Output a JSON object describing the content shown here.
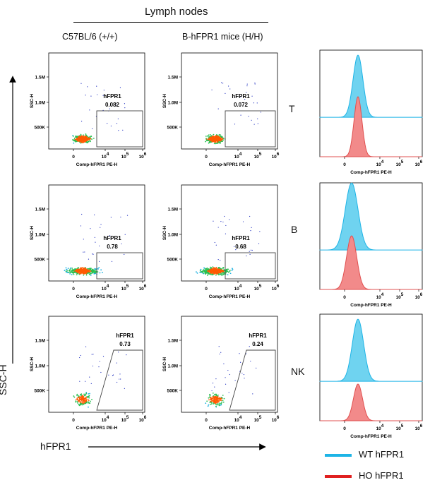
{
  "header": {
    "title": "Lymph nodes"
  },
  "columns": [
    "C57BL/6 (+/+)",
    "B-hFPR1 mice (H/H)"
  ],
  "rows": [
    "T",
    "B",
    "NK"
  ],
  "axes": {
    "y_label": "SSC-H",
    "x_label": "hFPR1"
  },
  "legend": [
    {
      "label": "WT hFPR1",
      "color": "#1eb4e6"
    },
    {
      "label": "HO hFPR1",
      "color": "#e02020"
    }
  ],
  "chart_data": {
    "type": "scatter",
    "dot_plot_axes": {
      "ylabel": "SSC-H",
      "xlabel": "Comp-hFPR1 PE-H",
      "y_ticks": [
        "500K",
        "1.0M",
        "1.5M"
      ],
      "x_ticks": [
        "0",
        "10^4",
        "10^5",
        "10^6"
      ]
    },
    "gate_label": "hFPR1",
    "gate_percent": {
      "T": {
        "C57BL/6 (+/+)": "0.082",
        "B-hFPR1 mice (H/H)": "0.072"
      },
      "B": {
        "C57BL/6 (+/+)": "0.78",
        "B-hFPR1 mice (H/H)": "0.68"
      },
      "NK": {
        "C57BL/6 (+/+)": "0.73",
        "B-hFPR1 mice (H/H)": "0.24"
      }
    },
    "histograms": {
      "type": "area",
      "xlabel": "Comp-hFPR1 PE-H",
      "x_ticks": [
        "0",
        "10^4",
        "10^5",
        "10^6"
      ],
      "series": [
        "WT hFPR1",
        "HO hFPR1"
      ]
    }
  }
}
